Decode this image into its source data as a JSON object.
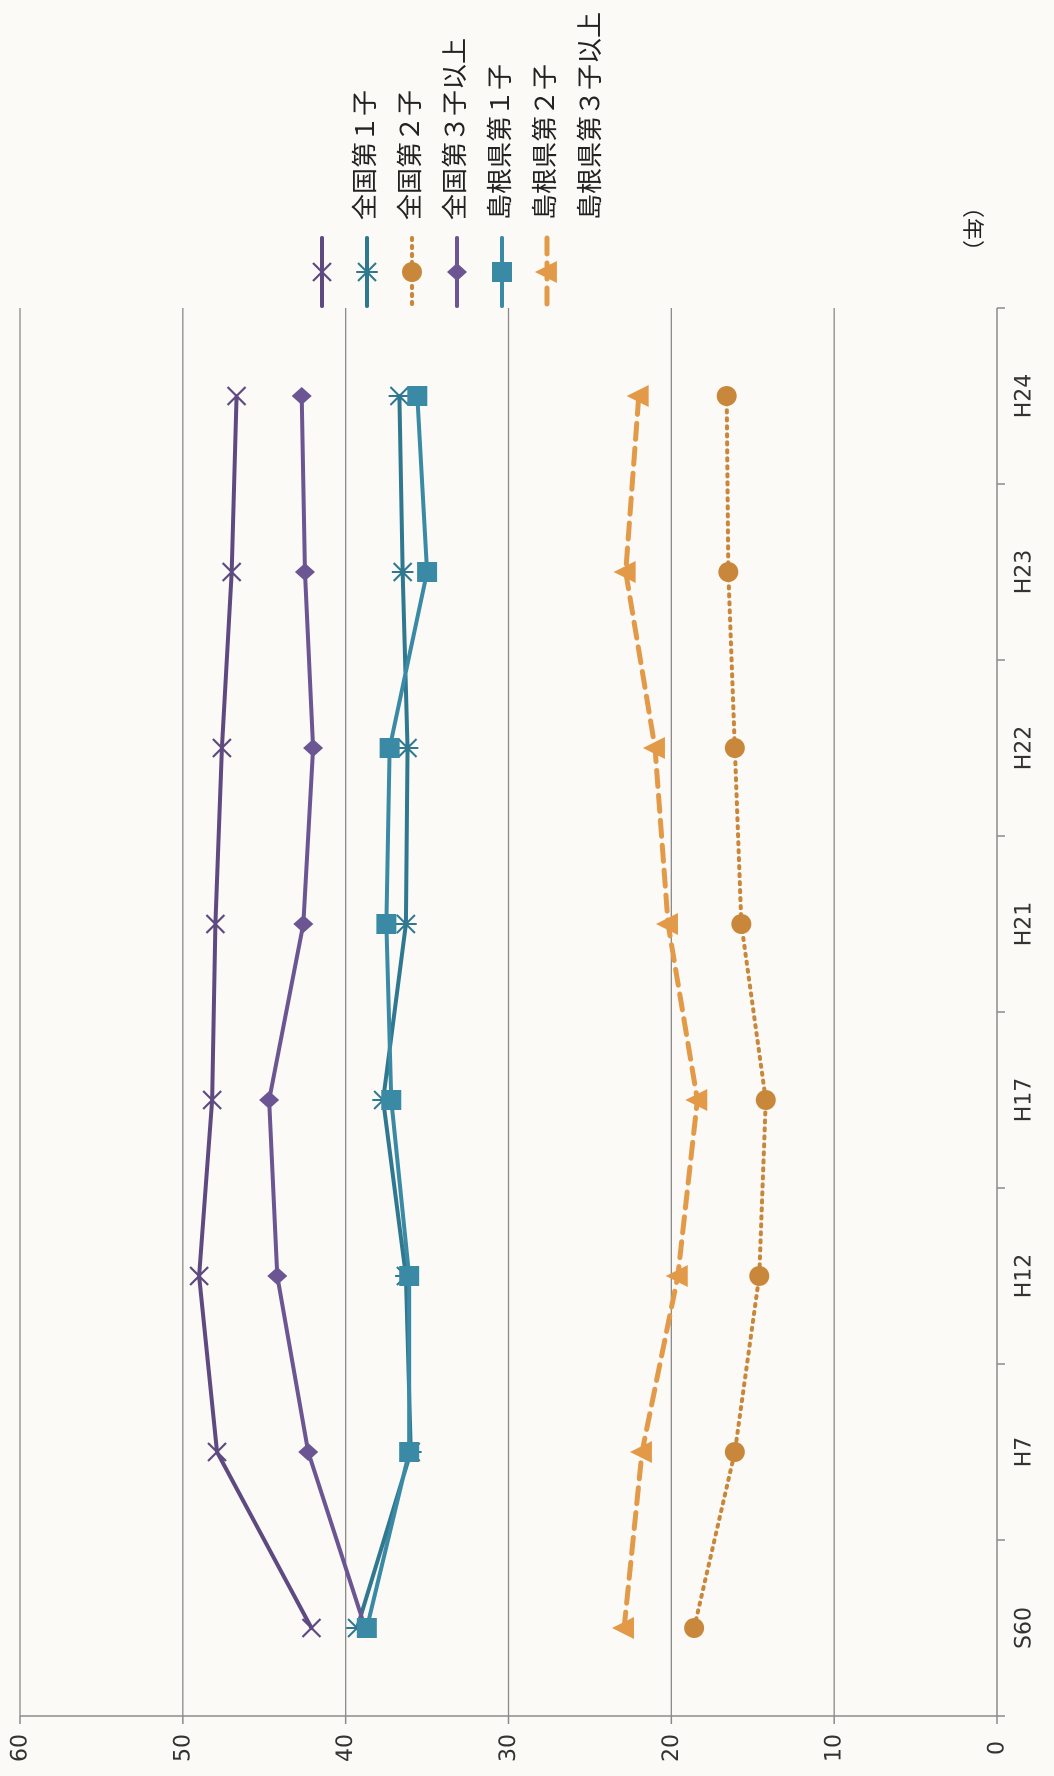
{
  "chart_data": {
    "type": "line",
    "x_unit": "（年）",
    "categories": [
      "S60",
      "H7",
      "H12",
      "H17",
      "H21",
      "H22",
      "H23",
      "H24"
    ],
    "ylim": [
      0,
      60
    ],
    "yticks": [
      0,
      10,
      20,
      30,
      40,
      50,
      60
    ],
    "grid": true,
    "legend_position": "top-right",
    "series": [
      {
        "name": "全国第１子",
        "values": [
          42.1,
          47.9,
          49.0,
          48.2,
          48.0,
          47.6,
          47.0,
          46.7
        ],
        "color": "#5e4a80",
        "marker": "x",
        "style": "solid"
      },
      {
        "name": "全国第２子",
        "values": [
          39.3,
          36.0,
          36.3,
          37.7,
          36.3,
          36.2,
          36.5,
          36.7
        ],
        "color": "#2f7890",
        "marker": "asterisk",
        "style": "solid"
      },
      {
        "name": "全国第３子以上",
        "values": [
          18.6,
          16.1,
          14.6,
          14.2,
          15.7,
          16.1,
          16.5,
          16.6
        ],
        "color": "#c8873a",
        "marker": "circle",
        "style": "dotted"
      },
      {
        "name": "島根県第１子",
        "values": [
          38.8,
          42.3,
          44.2,
          44.7,
          42.6,
          42.0,
          42.5,
          42.7
        ],
        "color": "#6b5592",
        "marker": "diamond",
        "style": "solid"
      },
      {
        "name": "島根県第２子",
        "values": [
          38.7,
          36.1,
          36.1,
          37.2,
          37.5,
          37.3,
          35.0,
          35.6
        ],
        "color": "#3a8aa5",
        "marker": "square",
        "style": "solid"
      },
      {
        "name": "島根県第３子以上",
        "values": [
          22.9,
          21.8,
          19.6,
          18.4,
          20.2,
          21.0,
          22.8,
          22.0
        ],
        "color": "#e39a48",
        "marker": "triangle",
        "style": "dashed"
      }
    ]
  }
}
